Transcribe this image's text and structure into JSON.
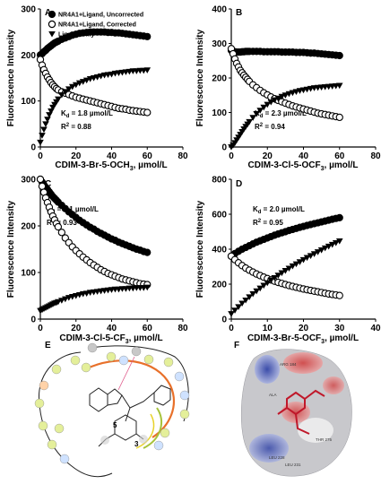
{
  "chart_data": [
    {
      "panel": "A",
      "type": "scatter",
      "xlabel": "CDIM-3-Br-5-OCH3, µmol/L",
      "xlabel_main": "CDIM-3-Br-5-OCH",
      "xlabel_sub": "3",
      "xlabel_tail": ", µmol/L",
      "ylabel": "Fluorescence Intensity",
      "xlim": [
        0,
        80
      ],
      "ylim": [
        0,
        300
      ],
      "xticks": [
        0,
        20,
        40,
        60,
        80
      ],
      "yticks": [
        0,
        100,
        200,
        300
      ],
      "annotation_kd": "d = 1.8 µmol/L",
      "annotation_r2": "2 = 0.88",
      "legend": [
        "NR4A1+Ligand, Uncorrected",
        "NR4A1+Ligand, Corrected",
        "Ligand Only"
      ],
      "series": [
        {
          "name": "NR4A1+Ligand, Uncorrected",
          "marker": "filled-circle",
          "x": [
            0,
            1,
            2,
            3,
            4,
            5,
            6,
            7,
            8,
            9,
            10,
            12,
            14,
            16,
            18,
            20,
            22,
            24,
            26,
            28,
            30,
            32,
            34,
            36,
            38,
            40,
            42,
            44,
            46,
            48,
            50,
            52,
            54,
            56,
            58,
            60
          ],
          "y": [
            200,
            203,
            207,
            210,
            214,
            217,
            220,
            223,
            226,
            228,
            230,
            234,
            237,
            240,
            243,
            245,
            247,
            248,
            249,
            250,
            250,
            250,
            250,
            250,
            249,
            249,
            248,
            248,
            247,
            246,
            245,
            244,
            243,
            242,
            241,
            240
          ]
        },
        {
          "name": "NR4A1+Ligand, Corrected",
          "marker": "open-circle",
          "x": [
            0,
            1,
            2,
            3,
            4,
            5,
            6,
            7,
            8,
            9,
            10,
            12,
            14,
            16,
            18,
            20,
            22,
            24,
            26,
            28,
            30,
            32,
            34,
            36,
            38,
            40,
            42,
            44,
            46,
            48,
            50,
            52,
            54,
            56,
            58,
            60
          ],
          "y": [
            190,
            178,
            168,
            160,
            152,
            146,
            140,
            135,
            131,
            127,
            124,
            120,
            117,
            114,
            111,
            108,
            106,
            104,
            102,
            100,
            98,
            96,
            94,
            92,
            90,
            88,
            86,
            84,
            83,
            82,
            80,
            79,
            78,
            77,
            76,
            75
          ]
        },
        {
          "name": "Ligand Only",
          "marker": "filled-triangle-down",
          "x": [
            0,
            1,
            2,
            3,
            4,
            5,
            6,
            7,
            8,
            9,
            10,
            12,
            14,
            16,
            18,
            20,
            22,
            24,
            26,
            28,
            30,
            32,
            34,
            36,
            38,
            40,
            42,
            44,
            46,
            48,
            50,
            52,
            54,
            56,
            58,
            60
          ],
          "y": [
            10,
            25,
            38,
            50,
            60,
            70,
            78,
            86,
            92,
            98,
            104,
            113,
            120,
            126,
            131,
            135,
            139,
            142,
            145,
            148,
            150,
            152,
            154,
            156,
            157,
            158,
            160,
            161,
            162,
            163,
            164,
            165,
            165,
            166,
            166,
            167
          ]
        }
      ]
    },
    {
      "panel": "B",
      "type": "scatter",
      "xlabel": "CDIM-3-Cl-5-OCF3, µmol/L",
      "xlabel_main": "CDIM-3-Cl-5-OCF",
      "xlabel_sub": "3",
      "xlabel_tail": ", µmol/L",
      "ylabel": "Fluorescence Intensity",
      "xlim": [
        0,
        80
      ],
      "ylim": [
        0,
        400
      ],
      "xticks": [
        0,
        20,
        40,
        60,
        80
      ],
      "yticks": [
        0,
        100,
        200,
        300,
        400
      ],
      "annotation_kd": "d = 2.3 µmol/L",
      "annotation_r2": "2 = 0.94",
      "series": [
        {
          "name": "NR4A1+Ligand, Uncorrected",
          "marker": "filled-circle",
          "x": [
            0,
            1,
            2,
            3,
            4,
            5,
            6,
            7,
            8,
            9,
            10,
            12,
            14,
            16,
            18,
            20,
            22,
            24,
            26,
            28,
            30,
            32,
            34,
            36,
            38,
            40,
            42,
            44,
            46,
            48,
            50,
            52,
            54,
            56,
            58,
            60
          ],
          "y": [
            280,
            278,
            276,
            275,
            275,
            275,
            276,
            276,
            277,
            277,
            277,
            277,
            277,
            277,
            276,
            276,
            276,
            276,
            276,
            275,
            275,
            275,
            275,
            274,
            274,
            274,
            273,
            272,
            272,
            271,
            270,
            269,
            268,
            267,
            266,
            265
          ]
        },
        {
          "name": "NR4A1+Ligand, Corrected",
          "marker": "open-circle",
          "x": [
            0,
            1,
            2,
            3,
            4,
            5,
            6,
            7,
            8,
            9,
            10,
            12,
            14,
            16,
            18,
            20,
            22,
            24,
            26,
            28,
            30,
            32,
            34,
            36,
            38,
            40,
            42,
            44,
            46,
            48,
            50,
            52,
            54,
            56,
            58,
            60
          ],
          "y": [
            285,
            270,
            255,
            242,
            232,
            222,
            215,
            208,
            202,
            196,
            190,
            180,
            172,
            164,
            157,
            151,
            145,
            140,
            135,
            131,
            127,
            123,
            119,
            116,
            113,
            110,
            107,
            104,
            101,
            98,
            96,
            94,
            92,
            90,
            88,
            86
          ]
        },
        {
          "name": "Ligand Only",
          "marker": "filled-triangle-down",
          "x": [
            0,
            1,
            2,
            3,
            4,
            5,
            6,
            7,
            8,
            9,
            10,
            12,
            14,
            16,
            18,
            20,
            22,
            24,
            26,
            28,
            30,
            32,
            34,
            36,
            38,
            40,
            42,
            44,
            46,
            48,
            50,
            52,
            54,
            56,
            58,
            60
          ],
          "y": [
            0,
            5,
            12,
            20,
            28,
            36,
            44,
            52,
            59,
            66,
            73,
            85,
            96,
            106,
            115,
            123,
            130,
            136,
            141,
            146,
            150,
            154,
            157,
            160,
            163,
            165,
            167,
            169,
            171,
            172,
            173,
            174,
            175,
            176,
            177,
            178
          ]
        }
      ]
    },
    {
      "panel": "C",
      "type": "scatter",
      "xlabel": "CDIM-3-Cl-5-CF3, µmol/L",
      "xlabel_main": "CDIM-3-Cl-5-CF",
      "xlabel_sub": "3",
      "xlabel_tail": ", µmol/L",
      "ylabel": "Fluorescence Intensity",
      "xlim": [
        0,
        80
      ],
      "ylim": [
        0,
        300
      ],
      "xticks": [
        0,
        20,
        40,
        60,
        80
      ],
      "yticks": [
        0,
        100,
        200,
        300
      ],
      "annotation_kd": "d = 3.1 µmol/L",
      "annotation_r2": "2 = 0.93",
      "series": [
        {
          "name": "NR4A1+Ligand, Uncorrected",
          "marker": "filled-circle",
          "x": [
            0,
            1,
            2,
            3,
            4,
            5,
            6,
            7,
            8,
            9,
            10,
            12,
            14,
            16,
            18,
            20,
            22,
            24,
            26,
            28,
            30,
            32,
            34,
            36,
            38,
            40,
            42,
            44,
            46,
            48,
            50,
            52,
            54,
            56,
            58,
            60
          ],
          "y": [
            300,
            294,
            288,
            283,
            278,
            273,
            268,
            263,
            259,
            255,
            251,
            244,
            237,
            230,
            224,
            218,
            212,
            207,
            202,
            197,
            193,
            188,
            184,
            180,
            176,
            172,
            169,
            165,
            162,
            159,
            156,
            153,
            150,
            148,
            145,
            143
          ]
        },
        {
          "name": "NR4A1+Ligand, Corrected",
          "marker": "open-circle",
          "x": [
            0,
            1,
            2,
            3,
            4,
            5,
            6,
            7,
            8,
            9,
            10,
            12,
            14,
            16,
            18,
            20,
            22,
            24,
            26,
            28,
            30,
            32,
            34,
            36,
            38,
            40,
            42,
            44,
            46,
            48,
            50,
            52,
            54,
            56,
            58,
            60
          ],
          "y": [
            300,
            285,
            272,
            260,
            250,
            240,
            230,
            221,
            213,
            205,
            198,
            186,
            174,
            164,
            155,
            147,
            140,
            133,
            127,
            121,
            116,
            111,
            106,
            102,
            98,
            95,
            92,
            89,
            86,
            84,
            82,
            80,
            78,
            76,
            75,
            74
          ]
        },
        {
          "name": "Ligand Only",
          "marker": "filled-triangle-down",
          "x": [
            0,
            1,
            2,
            3,
            4,
            5,
            6,
            7,
            8,
            9,
            10,
            12,
            14,
            16,
            18,
            20,
            22,
            24,
            26,
            28,
            30,
            32,
            34,
            36,
            38,
            40,
            42,
            44,
            46,
            48,
            50,
            52,
            54,
            56,
            58,
            60
          ],
          "y": [
            18,
            20,
            22,
            24,
            26,
            28,
            30,
            32,
            34,
            35,
            37,
            40,
            43,
            46,
            48,
            50,
            52,
            54,
            55,
            57,
            58,
            59,
            60,
            61,
            62,
            63,
            64,
            64,
            65,
            65,
            66,
            66,
            67,
            67,
            67,
            68
          ]
        }
      ]
    },
    {
      "panel": "D",
      "type": "scatter",
      "xlabel": "CDIM-3-Br-5-OCF3, µmol/L",
      "xlabel_main": "CDIM-3-Br-5-OCF",
      "xlabel_sub": "3",
      "xlabel_tail": ", µmol/L",
      "ylabel": "Fluorescence Intensity",
      "xlim": [
        0,
        40
      ],
      "ylim": [
        0,
        800
      ],
      "xticks": [
        0,
        10,
        20,
        30,
        40
      ],
      "yticks": [
        0,
        200,
        400,
        600,
        800
      ],
      "annotation_kd": "d = 2.0 µmol/L",
      "annotation_r2": "2 = 0.95",
      "series": [
        {
          "name": "NR4A1+Ligand, Uncorrected",
          "marker": "filled-circle",
          "x": [
            0,
            1,
            2,
            3,
            4,
            5,
            6,
            7,
            8,
            9,
            10,
            11,
            12,
            13,
            14,
            15,
            16,
            17,
            18,
            19,
            20,
            21,
            22,
            23,
            24,
            25,
            26,
            27,
            28,
            29,
            30
          ],
          "y": [
            360,
            375,
            388,
            400,
            410,
            420,
            430,
            440,
            448,
            456,
            464,
            472,
            480,
            487,
            494,
            500,
            507,
            513,
            519,
            525,
            530,
            536,
            541,
            546,
            551,
            556,
            561,
            566,
            571,
            576,
            580
          ]
        },
        {
          "name": "NR4A1+Ligand, Corrected",
          "marker": "open-circle",
          "x": [
            0,
            1,
            2,
            3,
            4,
            5,
            6,
            7,
            8,
            9,
            10,
            11,
            12,
            13,
            14,
            15,
            16,
            17,
            18,
            19,
            20,
            21,
            22,
            23,
            24,
            25,
            26,
            27,
            28,
            29,
            30
          ],
          "y": [
            360,
            340,
            322,
            306,
            292,
            280,
            269,
            258,
            249,
            240,
            232,
            224,
            217,
            210,
            204,
            198,
            192,
            187,
            182,
            177,
            172,
            168,
            164,
            160,
            156,
            152,
            148,
            144,
            141,
            138,
            135
          ]
        },
        {
          "name": "Ligand Only",
          "marker": "filled-triangle-down",
          "x": [
            0,
            1,
            2,
            3,
            4,
            5,
            6,
            7,
            8,
            9,
            10,
            11,
            12,
            13,
            14,
            15,
            16,
            17,
            18,
            19,
            20,
            21,
            22,
            23,
            24,
            25,
            26,
            27,
            28,
            29,
            30
          ],
          "y": [
            30,
            50,
            70,
            90,
            108,
            126,
            144,
            160,
            176,
            192,
            207,
            222,
            236,
            250,
            264,
            277,
            290,
            303,
            315,
            327,
            339,
            351,
            362,
            373,
            384,
            395,
            406,
            416,
            426,
            436,
            446
          ]
        }
      ]
    }
  ],
  "panel_letters": [
    "A",
    "B",
    "C",
    "D",
    "E",
    "F"
  ],
  "legend_labels": [
    "NR4A1+Ligand, Uncorrected",
    "NR4A1+Ligand, Corrected",
    "Ligand Only"
  ],
  "panel_e": {
    "atom_labels": [
      "5",
      "3"
    ]
  },
  "panel_f": {
    "residue_labels": [
      "ARG 184",
      "ALA",
      "LEU 228",
      "LEU 231",
      "THR 275"
    ]
  }
}
